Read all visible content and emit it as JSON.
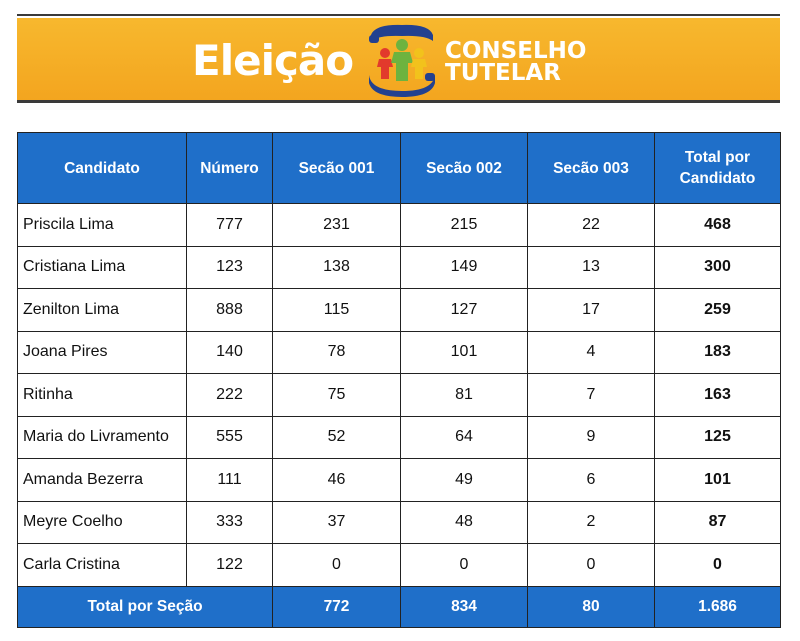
{
  "banner": {
    "title": "Eleição",
    "subtitle_line1": "CONSELHO",
    "subtitle_line2": "TUTELAR",
    "colors": {
      "background": "#f3a51f",
      "text": "#ffffff",
      "logo_blue": "#23418f",
      "figure_red": "#e23a2c",
      "figure_green": "#6db33f",
      "figure_yellow": "#f2c21c"
    },
    "logo_icon": "family-hands-icon"
  },
  "table": {
    "headers": [
      "Candidato",
      "Número",
      "Secão 001",
      "Secão 002",
      "Secão 003",
      "Total por Candidato"
    ],
    "rows": [
      [
        "Priscila Lima",
        "777",
        "231",
        "215",
        "22",
        "468"
      ],
      [
        "Cristiana Lima",
        "123",
        "138",
        "149",
        "13",
        "300"
      ],
      [
        "Zenilton Lima",
        "888",
        "115",
        "127",
        "17",
        "259"
      ],
      [
        "Joana Pires",
        "140",
        "78",
        "101",
        "4",
        "183"
      ],
      [
        "Ritinha",
        "222",
        "75",
        "81",
        "7",
        "163"
      ],
      [
        "Maria do Livramento",
        "555",
        "52",
        "64",
        "9",
        "125"
      ],
      [
        "Amanda Bezerra",
        "111",
        "46",
        "49",
        "6",
        "101"
      ],
      [
        "Meyre Coelho",
        "333",
        "37",
        "48",
        "2",
        "87"
      ],
      [
        "Carla Cristina",
        "122",
        "0",
        "0",
        "0",
        "0"
      ]
    ],
    "footer": {
      "label": "Total por Seção",
      "secao_001": "772",
      "secao_002": "834",
      "secao_003": "80",
      "total": "1.686"
    },
    "header_color": "#1f6fc9"
  }
}
